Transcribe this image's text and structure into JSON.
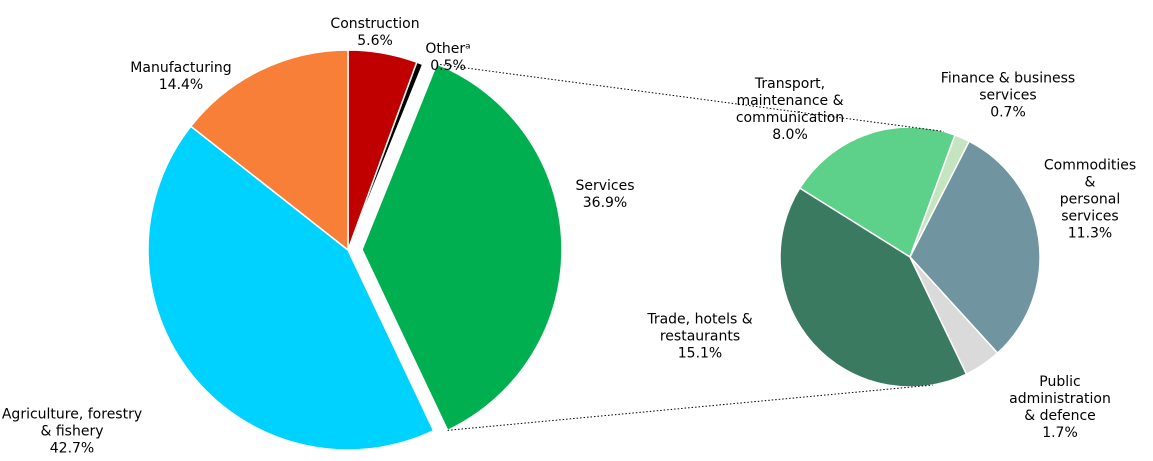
{
  "chart_data": [
    {
      "type": "pie",
      "categories": [
        "Construction",
        "Otherᵃ",
        "Services",
        "Agriculture, forestry\n& fishery",
        "Manufacturing"
      ],
      "values": [
        5.6,
        0.5,
        36.9,
        42.7,
        14.4
      ],
      "value_labels": [
        "5.6%",
        "0.5%",
        "36.9%",
        "42.7%",
        "14.4%"
      ],
      "colors": [
        "#c00000",
        "#000000",
        "#00b050",
        "#00d2ff",
        "#f77f37"
      ]
    },
    {
      "type": "pie",
      "categories": [
        "Transport,\nmaintenance &\ncommunication",
        "Finance & business\nservices",
        "Commodities &\npersonal\nservices",
        "Public administration\n& defence",
        "Trade, hotels &\nrestaurants"
      ],
      "values": [
        8.0,
        0.7,
        11.3,
        1.7,
        15.1
      ],
      "value_labels": [
        "8.0%",
        "0.7%",
        "11.3%",
        "1.7%",
        "15.1%"
      ],
      "colors": [
        "#5dd18a",
        "#c5e5c0",
        "#7094a0",
        "#dadada",
        "#3a7a60"
      ]
    }
  ]
}
